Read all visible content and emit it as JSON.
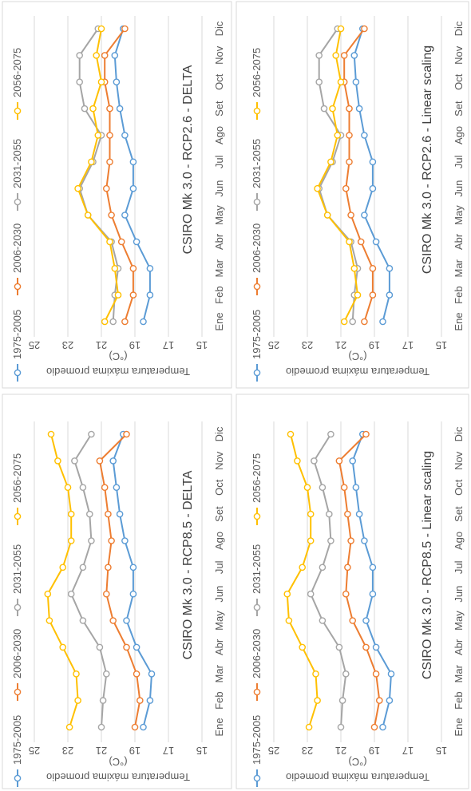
{
  "chart_data": [
    {
      "type": "line",
      "title": "CSIRO Mk 3.0 - RCP2.6 - Linear scaling",
      "ylabel": "Temperatura máxima promedio (°C)",
      "xlabel": "",
      "ylim": [
        15,
        25
      ],
      "yticks": [
        "15",
        "17",
        "19",
        "21",
        "23",
        "25"
      ],
      "categories": [
        "Ene",
        "Feb",
        "Mar",
        "Abr",
        "May",
        "Jun",
        "Jul",
        "Ago",
        "Set",
        "Oct",
        "Nov",
        "Dic"
      ],
      "legend_position": "top",
      "grid": true,
      "series": [
        {
          "name": "1975-2005",
          "color": "#5B9BD5",
          "values": [
            18.5,
            18.1,
            18.1,
            18.9,
            19.6,
            19.1,
            19.1,
            19.6,
            19.9,
            20.1,
            20.2,
            19.7
          ]
        },
        {
          "name": "2006-2030",
          "color": "#ED7D31",
          "values": [
            19.6,
            19.1,
            19.1,
            19.8,
            20.4,
            20.7,
            20.5,
            20.5,
            20.5,
            20.8,
            20.8,
            19.6
          ]
        },
        {
          "name": "2031-2055",
          "color": "#A5A5A5",
          "values": [
            20.3,
            20.2,
            20.0,
            20.4,
            21.8,
            22.3,
            21.5,
            21.0,
            22.0,
            22.3,
            22.3,
            21.2
          ]
        },
        {
          "name": "2056-2075",
          "color": "#FFC000",
          "values": [
            20.8,
            20.0,
            20.2,
            20.5,
            21.8,
            22.4,
            21.6,
            21.2,
            21.5,
            21.0,
            21.3,
            21.0
          ]
        }
      ]
    },
    {
      "type": "line",
      "title": "CSIRO Mk 3.0 - RCP2.6 - DELTA",
      "ylabel": "Temperatura máxima promedio (°C)",
      "xlabel": "",
      "ylim": [
        15,
        25
      ],
      "yticks": [
        "15",
        "17",
        "19",
        "21",
        "23",
        "25"
      ],
      "categories": [
        "Ene",
        "Feb",
        "Mar",
        "Abr",
        "May",
        "Jun",
        "Jul",
        "Ago",
        "Set",
        "Oct",
        "Nov",
        "Dic"
      ],
      "legend_position": "top",
      "grid": true,
      "series": [
        {
          "name": "1975-2005",
          "color": "#5B9BD5",
          "values": [
            18.5,
            18.1,
            18.1,
            18.9,
            19.6,
            19.1,
            19.1,
            19.6,
            19.9,
            20.1,
            20.2,
            19.7
          ]
        },
        {
          "name": "2006-2030",
          "color": "#ED7D31",
          "values": [
            19.6,
            19.1,
            19.1,
            19.8,
            20.4,
            20.7,
            20.5,
            20.5,
            20.5,
            20.8,
            20.8,
            19.6
          ]
        },
        {
          "name": "2031-2055",
          "color": "#A5A5A5",
          "values": [
            20.3,
            20.2,
            20.0,
            20.4,
            21.8,
            22.3,
            21.5,
            21.0,
            22.0,
            22.3,
            22.3,
            21.2
          ]
        },
        {
          "name": "2056-2075",
          "color": "#FFC000",
          "values": [
            20.8,
            20.0,
            20.2,
            20.5,
            21.8,
            22.4,
            21.6,
            21.2,
            21.5,
            21.0,
            21.3,
            21.0
          ]
        }
      ]
    },
    {
      "type": "line",
      "title": "CSIRO Mk 3.0 - RCP8.5 - Linear scaling",
      "ylabel": "Temperatura máxima promedio (°C)",
      "xlabel": "",
      "ylim": [
        15,
        25
      ],
      "yticks": [
        "15",
        "17",
        "19",
        "21",
        "23",
        "25"
      ],
      "categories": [
        "Ene",
        "Feb",
        "Mar",
        "Abr",
        "May",
        "Jun",
        "Jul",
        "Ago",
        "Set",
        "Oct",
        "Nov",
        "Dic"
      ],
      "legend_position": "top",
      "grid": true,
      "series": [
        {
          "name": "1975-2005",
          "color": "#5B9BD5",
          "values": [
            18.5,
            18.1,
            18.0,
            18.9,
            19.5,
            19.1,
            19.1,
            19.6,
            19.9,
            20.1,
            20.3,
            19.7
          ]
        },
        {
          "name": "2006-2030",
          "color": "#ED7D31",
          "values": [
            19.0,
            18.7,
            18.9,
            19.5,
            20.3,
            20.7,
            20.6,
            20.4,
            20.6,
            20.8,
            21.1,
            19.5
          ]
        },
        {
          "name": "2031-2055",
          "color": "#A5A5A5",
          "values": [
            21.0,
            20.9,
            20.7,
            21.1,
            22.1,
            22.8,
            22.1,
            21.6,
            21.7,
            22.1,
            22.6,
            21.6
          ]
        },
        {
          "name": "2056-2075",
          "color": "#FFC000",
          "values": [
            22.9,
            22.4,
            22.5,
            23.3,
            24.1,
            24.2,
            23.3,
            22.8,
            22.8,
            23.0,
            23.6,
            24.0
          ]
        }
      ]
    },
    {
      "type": "line",
      "title": "CSIRO Mk 3.0 - RCP8.5 - DELTA",
      "ylabel": "Temperatura máxima promedio (°C)",
      "xlabel": "",
      "ylim": [
        15,
        25
      ],
      "yticks": [
        "15",
        "17",
        "19",
        "21",
        "23",
        "25"
      ],
      "categories": [
        "Ene",
        "Feb",
        "Mar",
        "Abr",
        "May",
        "Jun",
        "Jul",
        "Ago",
        "Set",
        "Oct",
        "Nov",
        "Dic"
      ],
      "legend_position": "top",
      "grid": true,
      "series": [
        {
          "name": "1975-2005",
          "color": "#5B9BD5",
          "values": [
            18.5,
            18.1,
            18.0,
            18.9,
            19.5,
            19.1,
            19.1,
            19.6,
            19.9,
            20.1,
            20.3,
            19.7
          ]
        },
        {
          "name": "2006-2030",
          "color": "#ED7D31",
          "values": [
            19.0,
            18.7,
            18.9,
            19.5,
            20.3,
            20.7,
            20.6,
            20.4,
            20.6,
            20.8,
            21.1,
            19.5
          ]
        },
        {
          "name": "2031-2055",
          "color": "#A5A5A5",
          "values": [
            21.0,
            20.9,
            20.7,
            21.1,
            22.1,
            22.8,
            22.1,
            21.6,
            21.7,
            22.1,
            22.6,
            21.6
          ]
        },
        {
          "name": "2056-2075",
          "color": "#FFC000",
          "values": [
            22.9,
            22.4,
            22.5,
            23.3,
            24.1,
            24.2,
            23.3,
            22.8,
            22.8,
            23.0,
            23.6,
            24.0
          ]
        }
      ]
    }
  ]
}
